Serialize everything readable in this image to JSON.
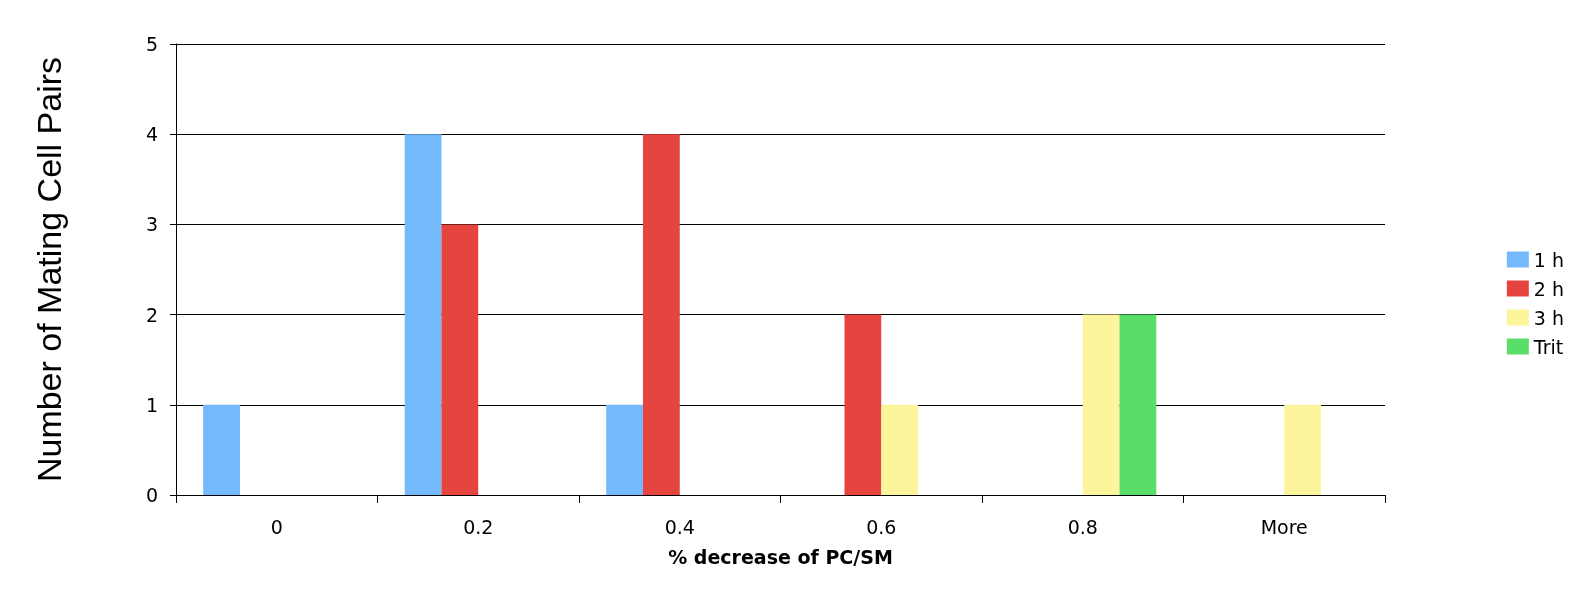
{
  "chart_data": {
    "type": "bar",
    "xlabel": "% decrease of PC/SM",
    "ylabel": "Number of Mating Cell Pairs",
    "categories": [
      "0",
      "0.2",
      "0.4",
      "0.6",
      "0.8",
      "More"
    ],
    "series": [
      {
        "name": "1 h",
        "color": "#74b9fb",
        "values": [
          1,
          4,
          1,
          0,
          0,
          0
        ]
      },
      {
        "name": "2 h",
        "color": "#e5443f",
        "values": [
          0,
          3,
          4,
          2,
          0,
          0
        ]
      },
      {
        "name": "3 h",
        "color": "#fcf59c",
        "values": [
          0,
          0,
          0,
          1,
          2,
          1
        ]
      },
      {
        "name": "Trit",
        "color": "#5ade6a",
        "values": [
          0,
          0,
          0,
          0,
          2,
          0
        ]
      }
    ],
    "ylim": [
      0,
      5
    ],
    "yticks": [
      0,
      1,
      2,
      3,
      4,
      5
    ],
    "grid": "y",
    "legend": "right"
  }
}
